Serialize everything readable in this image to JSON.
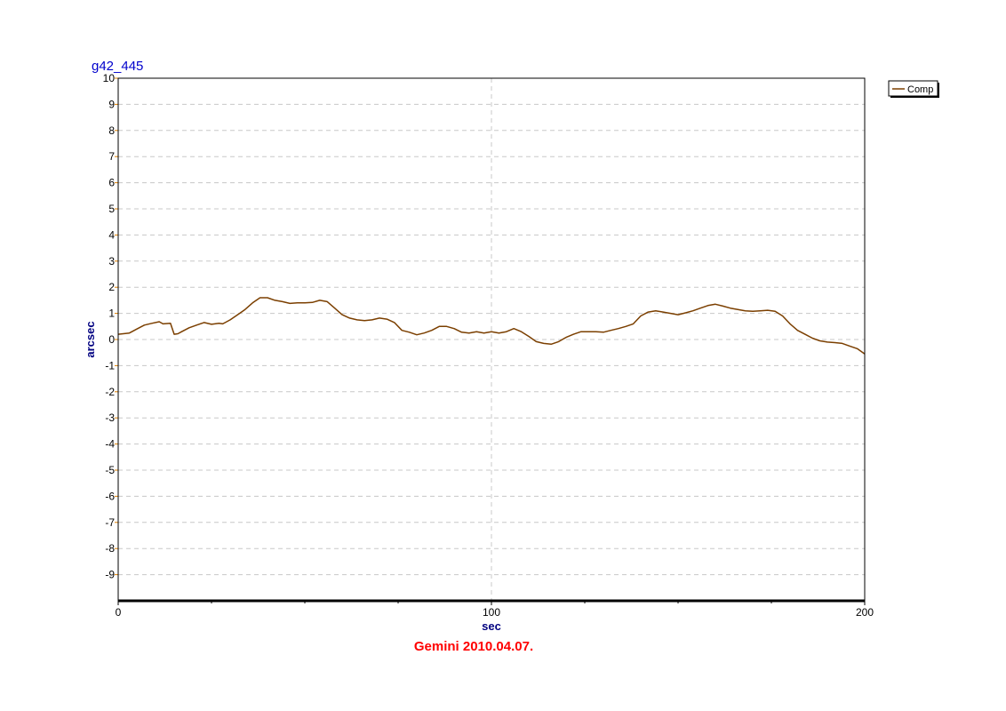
{
  "chart_data": {
    "type": "line",
    "title": "g42_445",
    "xlabel": "sec",
    "ylabel": "arcsec",
    "caption": "Gemini  2010.04.07.",
    "xlim": [
      0,
      200
    ],
    "ylim": [
      -10,
      10
    ],
    "x_ticks": [
      0,
      100,
      200
    ],
    "y_ticks": [
      10,
      9,
      8,
      7,
      6,
      5,
      4,
      3,
      2,
      1,
      0,
      -1,
      -2,
      -3,
      -4,
      -5,
      -6,
      -7,
      -8,
      -9
    ],
    "grid": true,
    "legend_position": "top-right",
    "series": [
      {
        "name": "Comp",
        "color": "#7b3f00",
        "x": [
          0,
          3,
          5,
          7,
          9,
          11,
          12,
          14,
          15,
          16,
          17,
          19,
          21,
          23,
          25,
          27,
          28,
          30,
          32,
          34,
          36,
          38,
          40,
          42,
          44,
          46,
          48,
          50,
          52,
          54,
          56,
          58,
          60,
          62,
          64,
          66,
          68,
          70,
          72,
          74,
          76,
          78,
          80,
          82,
          84,
          86,
          88,
          90,
          92,
          94,
          96,
          98,
          100,
          102,
          104,
          106,
          108,
          110,
          112,
          114,
          116,
          118,
          120,
          122,
          124,
          126,
          128,
          130,
          132,
          134,
          136,
          138,
          140,
          142,
          144,
          146,
          148,
          150,
          152,
          154,
          156,
          158,
          160,
          162,
          164,
          166,
          168,
          170,
          172,
          174,
          176,
          178,
          180,
          182,
          184,
          186,
          188,
          190,
          192,
          194,
          196,
          198,
          200
        ],
        "y": [
          0.2,
          0.25,
          0.4,
          0.55,
          0.62,
          0.68,
          0.6,
          0.62,
          0.2,
          0.22,
          0.3,
          0.45,
          0.55,
          0.65,
          0.58,
          0.62,
          0.6,
          0.75,
          0.95,
          1.15,
          1.4,
          1.6,
          1.6,
          1.5,
          1.45,
          1.38,
          1.4,
          1.4,
          1.42,
          1.5,
          1.45,
          1.2,
          0.95,
          0.82,
          0.75,
          0.72,
          0.75,
          0.82,
          0.78,
          0.65,
          0.35,
          0.28,
          0.18,
          0.25,
          0.35,
          0.5,
          0.5,
          0.42,
          0.28,
          0.25,
          0.3,
          0.25,
          0.3,
          0.25,
          0.3,
          0.42,
          0.3,
          0.12,
          -0.08,
          -0.15,
          -0.18,
          -0.08,
          0.08,
          0.2,
          0.3,
          0.3,
          0.3,
          0.28,
          0.35,
          0.42,
          0.5,
          0.6,
          0.9,
          1.05,
          1.1,
          1.05,
          1.0,
          0.95,
          1.02,
          1.1,
          1.2,
          1.3,
          1.35,
          1.28,
          1.2,
          1.15,
          1.1,
          1.08,
          1.1,
          1.12,
          1.08,
          0.9,
          0.6,
          0.35,
          0.2,
          0.05,
          -0.05,
          -0.1,
          -0.12,
          -0.15,
          -0.25,
          -0.35,
          -0.55
        ]
      }
    ]
  }
}
